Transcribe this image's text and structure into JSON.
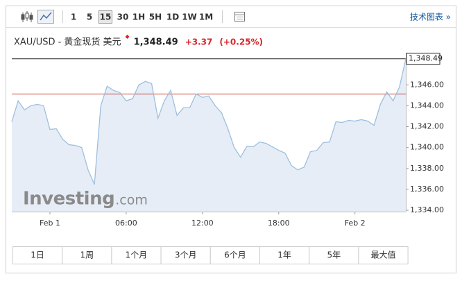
{
  "toolbar": {
    "intervals": [
      "1",
      "5",
      "15",
      "30",
      "1H",
      "5H",
      "1D",
      "1W",
      "1M"
    ],
    "selected_interval": "15",
    "link": "技术图表 »"
  },
  "quote": {
    "symbol": "XAU/USD - 黄金现货 美元",
    "price": "1,348.49",
    "change": "+3.37",
    "change_percent": "(+0.25%)"
  },
  "chart_data": {
    "type": "area",
    "color": "#9dbfdf",
    "fill": "#e6edf6",
    "x": [
      -3,
      -2.5,
      -2,
      -1.5,
      -1,
      -0.5,
      0,
      0.5,
      1,
      1.5,
      2,
      2.5,
      3,
      3.5,
      4,
      4.5,
      5,
      5.5,
      6,
      6.5,
      7,
      7.5,
      8,
      8.5,
      9,
      9.5,
      10,
      10.5,
      11,
      11.5,
      12,
      12.5,
      13,
      13.5,
      14,
      14.5,
      15,
      15.5,
      16,
      16.5,
      17,
      17.5,
      18,
      18.5,
      19,
      19.5,
      20,
      20.5,
      21,
      21.5,
      22,
      22.5,
      23,
      23.5,
      24,
      24.5,
      25,
      25.5,
      26,
      26.5,
      27,
      27.5,
      28
    ],
    "values": [
      1342.47,
      1344.47,
      1343.6,
      1344.0,
      1344.13,
      1344.0,
      1341.73,
      1341.8,
      1340.8,
      1340.27,
      1340.2,
      1340.0,
      1337.87,
      1336.47,
      1344.0,
      1345.87,
      1345.47,
      1345.27,
      1344.47,
      1344.67,
      1346.0,
      1346.33,
      1346.13,
      1342.8,
      1344.47,
      1345.47,
      1343.07,
      1343.8,
      1343.8,
      1345.13,
      1344.8,
      1344.93,
      1344.0,
      1343.33,
      1341.8,
      1340.0,
      1339.07,
      1340.13,
      1340.07,
      1340.53,
      1340.4,
      1340.07,
      1339.73,
      1339.47,
      1338.27,
      1337.87,
      1338.13,
      1339.6,
      1339.73,
      1340.47,
      1340.53,
      1342.47,
      1342.4,
      1342.6,
      1342.53,
      1342.67,
      1342.53,
      1342.13,
      1344.13,
      1345.33,
      1344.47,
      1345.8,
      1348.49
    ],
    "previous_close": 1345.12,
    "xlim": [
      -3,
      28
    ],
    "ylim": [
      1333.87,
      1349.07
    ],
    "xticks": [
      {
        "value": 0,
        "label": "Feb 1"
      },
      {
        "value": 6,
        "label": "06:00"
      },
      {
        "value": 12,
        "label": "12:00"
      },
      {
        "value": 18,
        "label": "18:00"
      },
      {
        "value": 24,
        "label": "Feb 2"
      }
    ],
    "yticks": [
      {
        "value": 1334,
        "label": "1,334.00"
      },
      {
        "value": 1336,
        "label": "1,336.00"
      },
      {
        "value": 1338,
        "label": "1,338.00"
      },
      {
        "value": 1340,
        "label": "1,340.00"
      },
      {
        "value": 1342,
        "label": "1,342.00"
      },
      {
        "value": 1344,
        "label": "1,344.00"
      },
      {
        "value": 1346,
        "label": "1,346.00"
      }
    ]
  },
  "watermark": {
    "brand": "Investing",
    "suffix": ".com"
  },
  "ranges": [
    "1日",
    "1周",
    "1个月",
    "3个月",
    "6个月",
    "1年",
    "5年",
    "最大值"
  ]
}
